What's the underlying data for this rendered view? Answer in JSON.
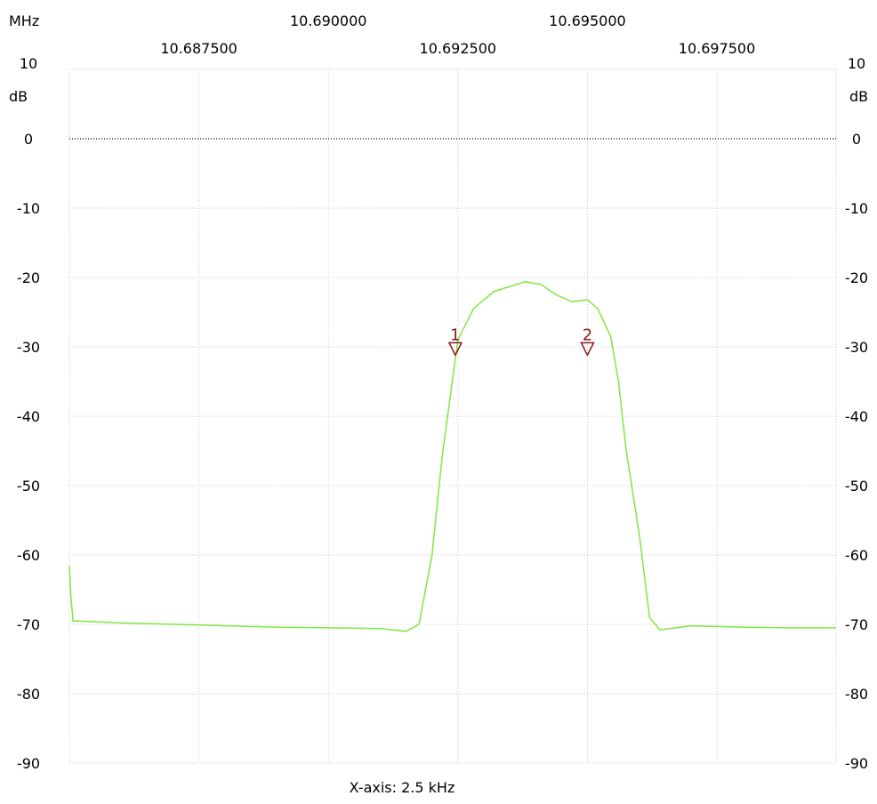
{
  "chart_data": {
    "type": "line",
    "x_unit_label": "MHz",
    "y_unit_label": "dB",
    "x_top_ticks": [
      "10.690000",
      "10.695000"
    ],
    "x_bottom_ticks": [
      "10.687500",
      "10.692500",
      "10.697500"
    ],
    "x_grid_values": [
      10.6875,
      10.69,
      10.6925,
      10.695,
      10.6975
    ],
    "xlim": [
      10.685,
      10.6998
    ],
    "ylim": [
      -90,
      10
    ],
    "y_ticks": [
      10,
      0,
      -10,
      -20,
      -30,
      -40,
      -50,
      -60,
      -70,
      -80,
      -90
    ],
    "y_tick_labels": [
      "10",
      "0",
      "-10",
      "-20",
      "-30",
      "-40",
      "-50",
      "-60",
      "-70",
      "-80",
      "-90"
    ],
    "reference_line_y": 0,
    "grid": true,
    "footer": "X-axis: 2.5 kHz",
    "series": [
      {
        "color": "#7fe840",
        "x": [
          10.685,
          10.68503,
          10.68507,
          10.686,
          10.6875,
          10.689,
          10.69,
          10.691,
          10.6915,
          10.69175,
          10.692,
          10.6922,
          10.6925,
          10.6928,
          10.6932,
          10.6935,
          10.6938,
          10.6941,
          10.6944,
          10.6947,
          10.695,
          10.6952,
          10.69545,
          10.6956,
          10.69575,
          10.696,
          10.6962,
          10.6964,
          10.697,
          10.698,
          10.699,
          10.6998
        ],
        "y": [
          -61.5,
          -66.0,
          -69.5,
          -69.8,
          -70.1,
          -70.4,
          -70.5,
          -70.6,
          -71.0,
          -70.0,
          -60.0,
          -45.5,
          -29.0,
          -24.5,
          -22.0,
          -21.3,
          -20.6,
          -21.0,
          -22.5,
          -23.5,
          -23.2,
          -24.5,
          -28.5,
          -35.0,
          -45.0,
          -57.0,
          -69.0,
          -70.8,
          -70.2,
          -70.4,
          -70.5,
          -70.5
        ]
      }
    ],
    "markers": [
      {
        "label": "1",
        "x": 10.69245,
        "y": -30.3
      },
      {
        "label": "2",
        "x": 10.695,
        "y": -30.3
      }
    ]
  }
}
